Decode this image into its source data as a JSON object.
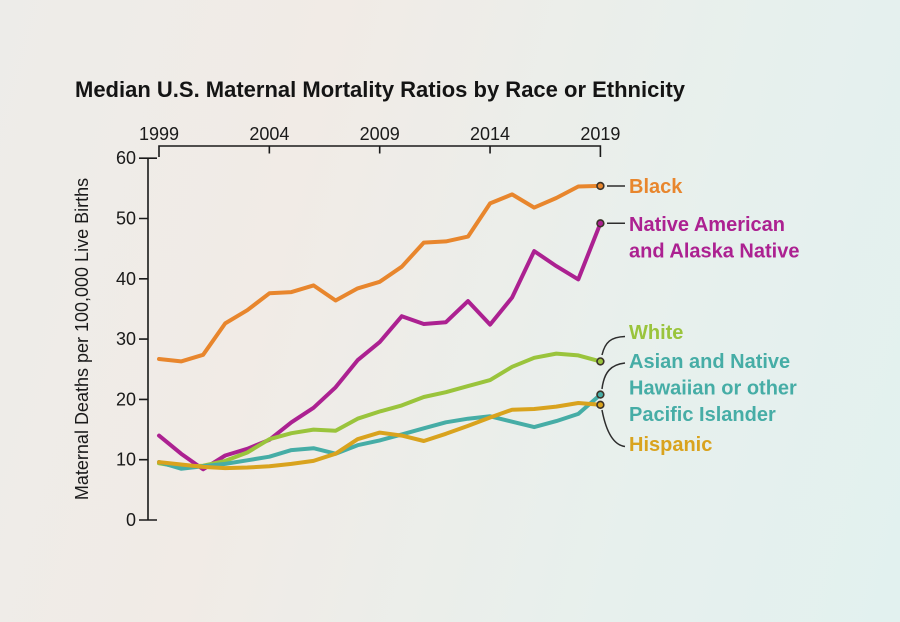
{
  "title": "Median U.S. Maternal Mortality Ratios by Race or Ethnicity",
  "y_axis": {
    "label": "Maternal Deaths per 100,000 Live Births",
    "ticks": [
      0,
      10,
      20,
      30,
      40,
      50,
      60
    ]
  },
  "x_axis": {
    "ticks": [
      1999,
      2004,
      2009,
      2014,
      2019
    ]
  },
  "colors": {
    "black_series": "#E8862D",
    "native_american_series": "#AC2191",
    "white_series": "#9AC43C",
    "asian_nhpi_series": "#46ADA6",
    "hispanic_series": "#D9A31E",
    "axis": "#1a1a1a",
    "leader": "#2d2d2d"
  },
  "chart_data": {
    "type": "line",
    "title": "Median U.S. Maternal Mortality Ratios by Race or Ethnicity",
    "xlabel": "",
    "ylabel": "Maternal Deaths per 100,000 Live Births",
    "xlim": [
      1999,
      2019
    ],
    "ylim": [
      0,
      60
    ],
    "grid": false,
    "legend_position": "right-of-line-ends",
    "x": [
      1999,
      2000,
      2001,
      2002,
      2003,
      2004,
      2005,
      2006,
      2007,
      2008,
      2009,
      2010,
      2011,
      2012,
      2013,
      2014,
      2015,
      2016,
      2017,
      2018,
      2019
    ],
    "series": [
      {
        "name": "Black",
        "color": "#E8862D",
        "label_lines": [
          "Black"
        ],
        "values": [
          26.7,
          26.3,
          27.4,
          32.6,
          34.8,
          37.6,
          37.8,
          38.9,
          36.4,
          38.4,
          39.5,
          42.0,
          46.0,
          46.2,
          47.0,
          52.5,
          54.0,
          51.8,
          53.4,
          55.3,
          55.4
        ]
      },
      {
        "name": "Native American and Alaska Native",
        "color": "#AC2191",
        "label_lines": [
          "Native American",
          "and Alaska Native"
        ],
        "values": [
          14.0,
          11.0,
          8.4,
          10.7,
          11.8,
          13.3,
          16.2,
          18.6,
          22.0,
          26.5,
          29.5,
          33.8,
          32.5,
          32.8,
          36.3,
          32.4,
          36.9,
          44.6,
          42.1,
          39.9,
          49.2
        ]
      },
      {
        "name": "White",
        "color": "#9AC43C",
        "label_lines": [
          "White"
        ],
        "values": [
          9.4,
          8.8,
          9.0,
          9.8,
          11.2,
          13.4,
          14.4,
          15.0,
          14.8,
          16.8,
          18.0,
          19.0,
          20.4,
          21.2,
          22.2,
          23.2,
          25.4,
          26.9,
          27.6,
          27.3,
          26.3
        ]
      },
      {
        "name": "Asian and Native Hawaiian or other Pacific Islander",
        "color": "#46ADA6",
        "label_lines": [
          "Asian and Native",
          "Hawaiian or other",
          "Pacific Islander"
        ],
        "values": [
          9.6,
          8.5,
          8.9,
          9.3,
          9.9,
          10.5,
          11.6,
          11.9,
          11.0,
          12.4,
          13.2,
          14.2,
          15.2,
          16.2,
          16.8,
          17.2,
          16.3,
          15.4,
          16.4,
          17.6,
          20.8
        ]
      },
      {
        "name": "Hispanic",
        "color": "#D9A31E",
        "label_lines": [
          "Hispanic"
        ],
        "values": [
          9.6,
          9.2,
          8.8,
          8.6,
          8.7,
          8.9,
          9.3,
          9.8,
          11.0,
          13.4,
          14.5,
          14.0,
          13.1,
          14.3,
          15.6,
          17.0,
          18.3,
          18.4,
          18.8,
          19.4,
          19.1
        ]
      }
    ]
  }
}
